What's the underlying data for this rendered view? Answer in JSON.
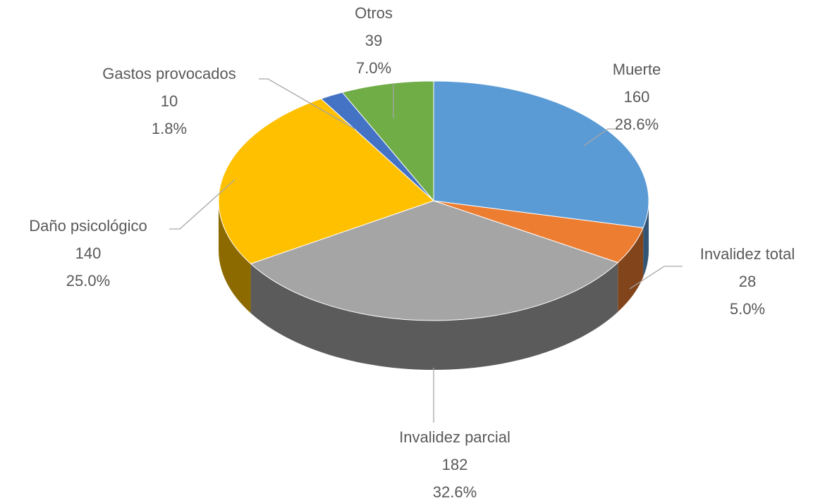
{
  "chart_data": {
    "type": "pie3d",
    "categories": [
      "Muerte",
      "Invalidez total",
      "Invalidez parcial",
      "Daño psicológico",
      "Gastos provocados",
      "Otros"
    ],
    "values": [
      160,
      28,
      182,
      140,
      10,
      39
    ],
    "percent_labels": [
      "28.6%",
      "5.0%",
      "32.6%",
      "25.0%",
      "1.8%",
      "7.0%"
    ],
    "colors": [
      "#5b9bd5",
      "#ed7d31",
      "#a5a5a5",
      "#ffc000",
      "#4472c4",
      "#70ad47"
    ]
  }
}
